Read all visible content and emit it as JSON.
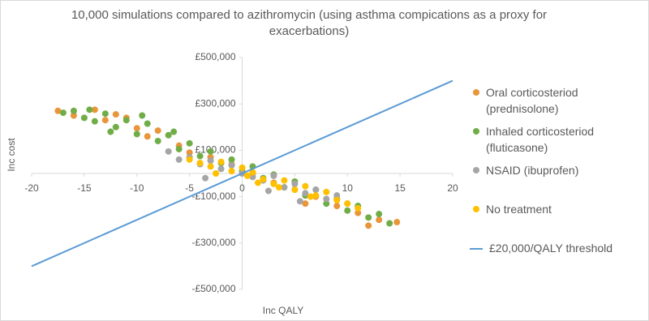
{
  "chart_data": {
    "type": "scatter",
    "title": "10,000 simulations compared to azithromycin (using asthma compications as a proxy for exacerbations)",
    "x_label": "Inc QALY",
    "y_label": "Inc cost",
    "xlim": [
      -20,
      20
    ],
    "xticks": [
      -20,
      -15,
      -10,
      -5,
      0,
      5,
      10,
      15,
      20
    ],
    "ylim": [
      -500000,
      500000
    ],
    "yticks": [
      {
        "value": -500000,
        "label": "-£500,000"
      },
      {
        "value": -300000,
        "label": "-£300,000"
      },
      {
        "value": -100000,
        "label": "-£100,000"
      },
      {
        "value": 100000,
        "label": "£100,000"
      },
      {
        "value": 300000,
        "label": "£300,000"
      },
      {
        "value": 500000,
        "label": "£500,000"
      }
    ],
    "grid": false,
    "legend": "right",
    "series": [
      {
        "name": "Oral corticosteriod (prednisolone)",
        "color": "#e9953a",
        "x": [
          -17.5,
          -16,
          -14,
          -13,
          -12,
          -10,
          -9,
          -8,
          -6,
          -5,
          -3,
          -1,
          1,
          3,
          5,
          7,
          9,
          11,
          13,
          14.7,
          -11,
          6,
          12
        ],
        "values": [
          270000,
          250000,
          275000,
          230000,
          255000,
          195000,
          160000,
          185000,
          120000,
          90000,
          70000,
          40000,
          0,
          -40000,
          -70000,
          -100000,
          -140000,
          -170000,
          -200000,
          -210000,
          240000,
          -130000,
          -225000
        ]
      },
      {
        "name": "Inhaled corticosteriod (fluticasone)",
        "color": "#70ad47",
        "x": [
          -17,
          -16,
          -15,
          -14.5,
          -14,
          -13,
          -12,
          -11,
          -10,
          -9,
          -8,
          -7,
          -6,
          -5,
          -4,
          -3,
          -2,
          -1,
          0,
          1,
          2,
          3,
          4,
          5,
          6,
          7,
          8,
          9,
          10,
          11,
          12,
          13,
          14,
          -9.5,
          -6.5,
          -12.5
        ],
        "values": [
          262000,
          270000,
          240000,
          275000,
          225000,
          258000,
          200000,
          230000,
          170000,
          215000,
          140000,
          165000,
          105000,
          130000,
          75000,
          95000,
          45000,
          60000,
          10000,
          30000,
          -20000,
          -5000,
          -60000,
          -35000,
          -95000,
          -70000,
          -130000,
          -110000,
          -160000,
          -140000,
          -190000,
          -175000,
          -215000,
          250000,
          180000,
          180000
        ]
      },
      {
        "name": "NSAID (ibuprofen)",
        "color": "#a5a5a5",
        "x": [
          -7,
          -6,
          -5,
          -4,
          -3,
          -2,
          -1,
          0,
          1,
          2,
          3,
          4,
          5,
          6,
          7,
          8,
          9,
          10,
          -3.5,
          2.5,
          5.5
        ],
        "values": [
          95000,
          60000,
          70000,
          40000,
          55000,
          20000,
          35000,
          0,
          -15000,
          -30000,
          -10000,
          -60000,
          -45000,
          -85000,
          -70000,
          -110000,
          -95000,
          -130000,
          -20000,
          -75000,
          -120000
        ]
      },
      {
        "name": "No treatment",
        "color": "#ffc000",
        "x": [
          -5,
          -4,
          -3,
          -2,
          -1,
          0,
          0.5,
          1,
          2,
          3,
          4,
          5,
          6,
          7,
          8,
          9,
          10,
          11,
          -2.5,
          1.5,
          3.5,
          6.5
        ],
        "values": [
          60000,
          45000,
          30000,
          50000,
          10000,
          25000,
          -10000,
          5000,
          -25000,
          -45000,
          -30000,
          -70000,
          -55000,
          -95000,
          -80000,
          -115000,
          -130000,
          -150000,
          0,
          -40000,
          -60000,
          -100000
        ]
      },
      {
        "name": "£20,000/QALY threshold",
        "color": "#5b9bd5",
        "type": "line",
        "x": [
          -20,
          20
        ],
        "values": [
          -400000,
          400000
        ]
      }
    ]
  }
}
